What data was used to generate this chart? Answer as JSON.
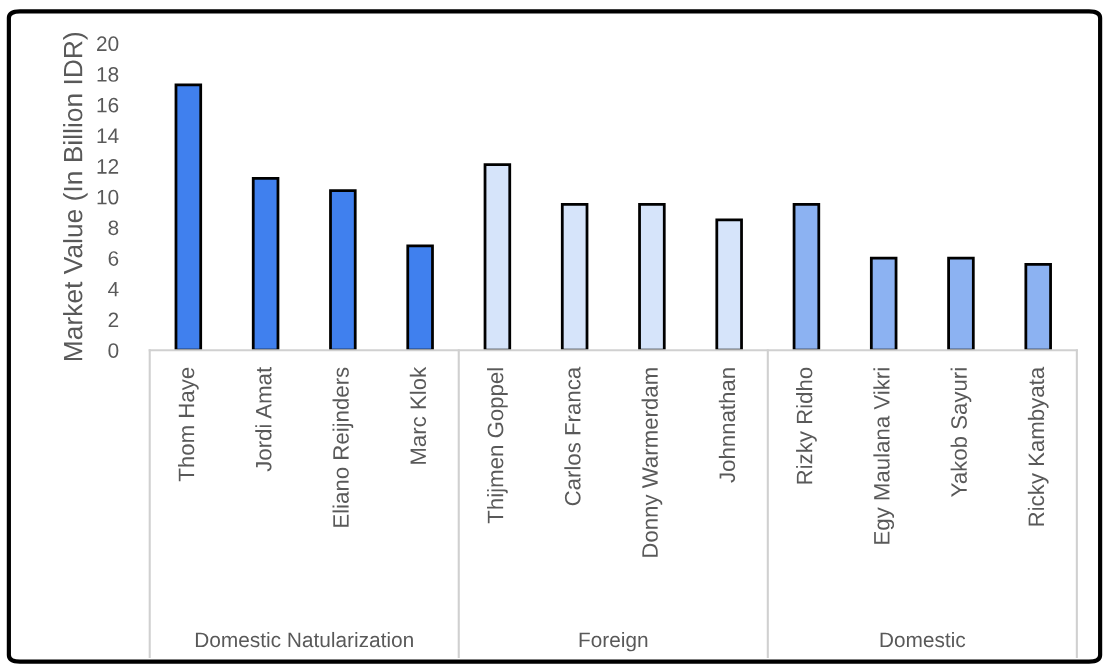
{
  "chart_data": {
    "type": "bar",
    "ylabel": "Market Value (In Billion IDR)",
    "categories": [
      "Thom Haye",
      "Jordi Amat",
      "Eliano Reijnders",
      "Marc Klok",
      "Thijmen Goppel",
      "Carlos Franca",
      "Donny Warmerdam",
      "Johnnathan",
      "Rizky Ridho",
      "Egy Maulana Vikri",
      "Yakob Sayuri",
      "Ricky Kambyata"
    ],
    "values": [
      17.3,
      11.2,
      10.4,
      6.8,
      12.1,
      9.5,
      9.5,
      8.5,
      9.5,
      6.0,
      6.0,
      5.6
    ],
    "colors": [
      "#4080ee",
      "#4080ee",
      "#4080ee",
      "#4080ee",
      "#d6e4fa",
      "#d6e4fa",
      "#d6e4fa",
      "#d6e4fa",
      "#8cb2f2",
      "#8cb2f2",
      "#8cb2f2",
      "#8cb2f2"
    ],
    "annotations": [
      "Domestic Natularization",
      "Foreign",
      "Domestic"
    ],
    "ylim": [
      0,
      20
    ],
    "yticks": [
      0,
      2,
      4,
      6,
      8,
      10,
      12,
      14,
      16,
      18,
      20
    ],
    "grid": false
  }
}
